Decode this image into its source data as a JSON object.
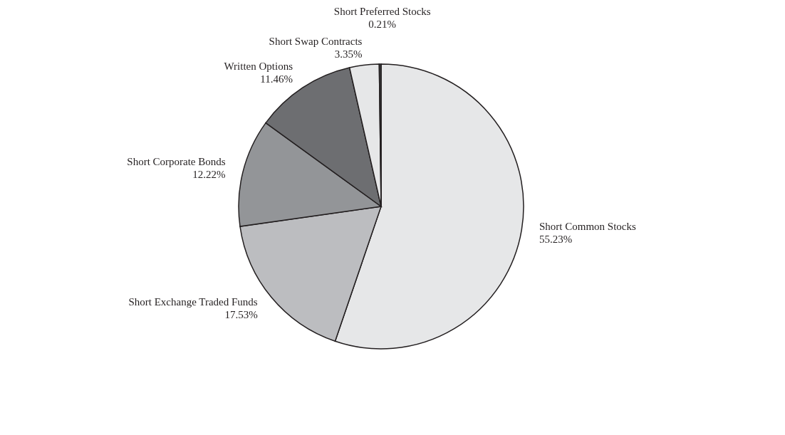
{
  "chart_data": {
    "type": "pie",
    "categories": [
      "Short Common Stocks",
      "Short Exchange Traded Funds",
      "Short Corporate Bonds",
      "Written Options",
      "Short Swap Contracts",
      "Short Preferred Stocks"
    ],
    "values": [
      55.23,
      17.53,
      12.22,
      11.46,
      3.35,
      0.21
    ],
    "value_labels": [
      "55.23%",
      "17.53%",
      "12.22%",
      "11.46%",
      "3.35%",
      "0.21%"
    ],
    "colors": [
      "#e6e7e8",
      "#bcbdc0",
      "#939598",
      "#6d6e71",
      "#e6e7e8",
      "#404041"
    ],
    "legend": false
  }
}
